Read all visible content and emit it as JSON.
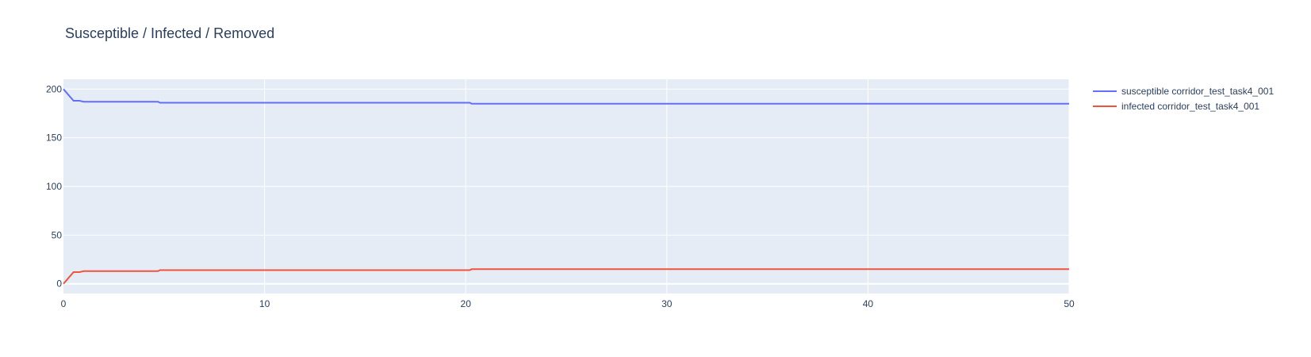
{
  "chart_data": {
    "type": "line",
    "title": "Susceptible / Infected / Removed",
    "xlabel": "",
    "ylabel": "",
    "xlim": [
      0,
      50
    ],
    "ylim": [
      -10,
      210
    ],
    "x_ticks": [
      0,
      10,
      20,
      30,
      40,
      50
    ],
    "y_ticks": [
      0,
      50,
      100,
      150,
      200
    ],
    "grid": true,
    "legend_position": "right",
    "series": [
      {
        "name": "susceptible corridor_test_task4_001",
        "color": "#636efa",
        "points": [
          [
            0,
            200
          ],
          [
            0.5,
            188
          ],
          [
            0.8,
            188
          ],
          [
            1,
            187
          ],
          [
            4.7,
            187
          ],
          [
            4.8,
            186
          ],
          [
            20.2,
            186
          ],
          [
            20.3,
            185
          ],
          [
            50,
            185
          ]
        ]
      },
      {
        "name": "infected corridor_test_task4_001",
        "color": "#ef553b",
        "points": [
          [
            0,
            0
          ],
          [
            0.5,
            12
          ],
          [
            0.8,
            12
          ],
          [
            1,
            13
          ],
          [
            4.7,
            13
          ],
          [
            4.8,
            14
          ],
          [
            20.2,
            14
          ],
          [
            20.3,
            15
          ],
          [
            50,
            15
          ]
        ]
      }
    ]
  }
}
